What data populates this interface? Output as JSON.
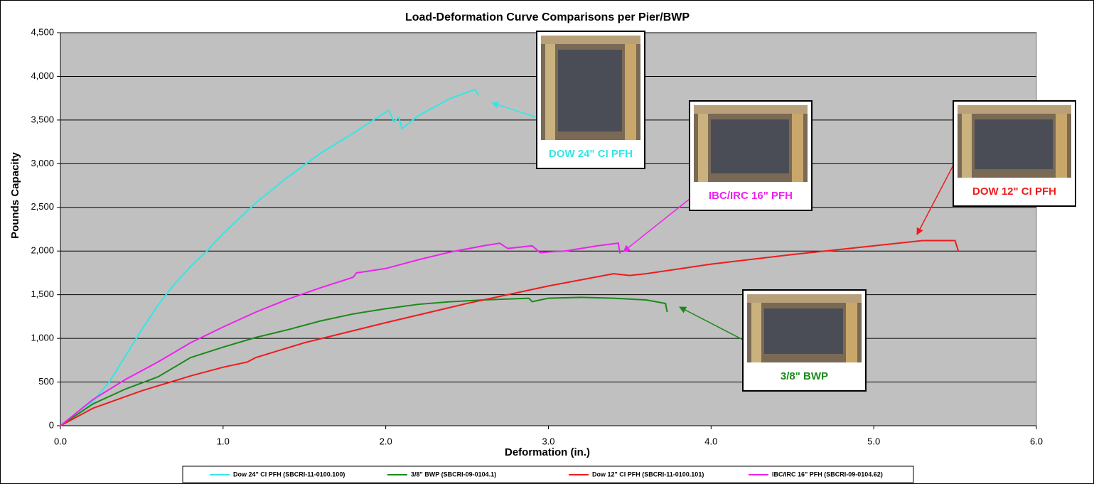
{
  "chart_data": {
    "type": "line",
    "title": "Load-Deformation Curve Comparisons per Pier/BWP",
    "x_label": "Deformation (in.)",
    "y_label": "Pounds Capacity",
    "xlim": [
      0,
      6
    ],
    "ylim": [
      0,
      4500
    ],
    "xticks": [
      {
        "value": 0,
        "label": "0.0"
      },
      {
        "value": 1,
        "label": "1.0"
      },
      {
        "value": 2,
        "label": "2.0"
      },
      {
        "value": 3,
        "label": "3.0"
      },
      {
        "value": 4,
        "label": "4.0"
      },
      {
        "value": 5,
        "label": "5.0"
      },
      {
        "value": 6,
        "label": "6.0"
      }
    ],
    "yticks": [
      0,
      500,
      {
        "value": 1000,
        "label": "1,000"
      },
      {
        "value": 1500,
        "label": "1,500"
      },
      {
        "value": 2000,
        "label": "2,000"
      },
      {
        "value": 2500,
        "label": "2,500"
      },
      {
        "value": 3000,
        "label": "3,000"
      },
      {
        "value": 3500,
        "label": "3,500"
      },
      {
        "value": 4000,
        "label": "4,000"
      },
      {
        "value": 4500,
        "label": "4,500"
      }
    ],
    "grid": true,
    "legend": "bottom",
    "series": [
      {
        "name": "Dow 24\" CI PFH (SBCRI-11-0100.100)",
        "color": "#33e6e6",
        "x": [
          0,
          0.1,
          0.2,
          0.3,
          0.4,
          0.5,
          0.6,
          0.7,
          0.8,
          0.9,
          1.0,
          1.2,
          1.4,
          1.6,
          1.8,
          2.0,
          2.02,
          2.05,
          2.08,
          2.1,
          2.2,
          2.4,
          2.55,
          2.57
        ],
        "values": [
          0,
          150,
          280,
          500,
          800,
          1100,
          1380,
          1620,
          1820,
          2000,
          2200,
          2550,
          2850,
          3120,
          3350,
          3590,
          3610,
          3480,
          3530,
          3400,
          3550,
          3750,
          3850,
          3780
        ]
      },
      {
        "name": "3/8\" BWP (SBCRI-09-0104.1)",
        "color": "#1a8a1a",
        "x": [
          0,
          0.2,
          0.4,
          0.6,
          0.8,
          1.0,
          1.2,
          1.4,
          1.6,
          1.8,
          2.0,
          2.2,
          2.4,
          2.6,
          2.88,
          2.9,
          3.0,
          3.2,
          3.4,
          3.6,
          3.72,
          3.73
        ],
        "values": [
          0,
          250,
          420,
          560,
          780,
          900,
          1010,
          1100,
          1200,
          1280,
          1340,
          1390,
          1420,
          1440,
          1460,
          1420,
          1460,
          1470,
          1460,
          1440,
          1400,
          1300
        ]
      },
      {
        "name": "Dow 12\" CI PFH (SBCRI-11-0100.101)",
        "color": "#ee1c1c",
        "x": [
          0,
          0.2,
          0.5,
          0.8,
          1.0,
          1.15,
          1.2,
          1.5,
          2.0,
          2.5,
          3.0,
          3.4,
          3.5,
          3.6,
          4.0,
          4.5,
          5.0,
          5.3,
          5.5,
          5.52
        ],
        "values": [
          0,
          200,
          400,
          570,
          670,
          730,
          780,
          950,
          1180,
          1400,
          1600,
          1740,
          1720,
          1740,
          1850,
          1960,
          2060,
          2120,
          2120,
          2000
        ]
      },
      {
        "name": "IBC/IRC 16\" PFH (SBCRI-09-0104.62)",
        "color": "#ee22ee",
        "x": [
          0,
          0.2,
          0.4,
          0.6,
          0.8,
          1.0,
          1.2,
          1.4,
          1.6,
          1.8,
          1.82,
          2.0,
          2.2,
          2.4,
          2.6,
          2.7,
          2.75,
          2.9,
          2.95,
          3.0,
          3.1,
          3.3,
          3.43,
          3.44
        ],
        "values": [
          0,
          300,
          530,
          730,
          950,
          1130,
          1300,
          1450,
          1580,
          1700,
          1750,
          1800,
          1900,
          1990,
          2060,
          2090,
          2030,
          2060,
          1980,
          1990,
          2000,
          2060,
          2090,
          1970
        ]
      }
    ],
    "annotations": [
      {
        "text": "DOW 24\" CI PFH",
        "color": "#33e6e6"
      },
      {
        "text": "IBC/IRC 16\" PFH",
        "color": "#ee22ee"
      },
      {
        "text": "DOW 12\" CI PFH",
        "color": "#ee1c1c"
      },
      {
        "text": "3/8\" BWP",
        "color": "#1a8a1a"
      }
    ]
  }
}
